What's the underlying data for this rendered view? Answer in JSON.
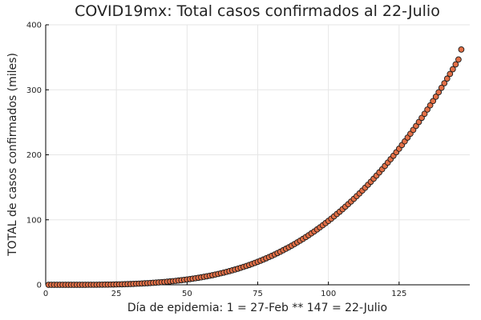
{
  "chart_data": {
    "type": "scatter",
    "title": "COVID19mx: Total casos confirmados al 22-Julio",
    "xlabel": "Día de epidemia: 1 = 27-Feb ** 147 = 22-Julio",
    "ylabel": "TOTAL de casos confirmados (miles)",
    "xlim": [
      0,
      150
    ],
    "ylim": [
      0,
      400
    ],
    "xticks": [
      0,
      25,
      50,
      75,
      100,
      125
    ],
    "yticks": [
      0,
      100,
      200,
      300,
      400
    ],
    "x_tick_labels": [
      "0",
      "25",
      "50",
      "75",
      "100",
      "125"
    ],
    "y_tick_labels": [
      "0",
      "100",
      "200",
      "300",
      "400"
    ],
    "grid": true,
    "legend": "none",
    "marker_color": "#e26f46",
    "series": [
      {
        "x": [
          1,
          2,
          3,
          4,
          5,
          6,
          7,
          8,
          9,
          10,
          11,
          12,
          13,
          14,
          15,
          16,
          17,
          18,
          19,
          20,
          21,
          22,
          23,
          24,
          25,
          26,
          27,
          28,
          29,
          30,
          31,
          32,
          33,
          34,
          35,
          36,
          37,
          38,
          39,
          40,
          41,
          42,
          43,
          44,
          45,
          46,
          47,
          48,
          49,
          50,
          51,
          52,
          53,
          54,
          55,
          56,
          57,
          58,
          59,
          60,
          61,
          62,
          63,
          64,
          65,
          66,
          67,
          68,
          69,
          70,
          71,
          72,
          73,
          74,
          75,
          76,
          77,
          78,
          79,
          80,
          81,
          82,
          83,
          84,
          85,
          86,
          87,
          88,
          89,
          90,
          91,
          92,
          93,
          94,
          95,
          96,
          97,
          98,
          99,
          100,
          101,
          102,
          103,
          104,
          105,
          106,
          107,
          108,
          109,
          110,
          111,
          112,
          113,
          114,
          115,
          116,
          117,
          118,
          119,
          120,
          121,
          122,
          123,
          124,
          125,
          126,
          127,
          128,
          129,
          130,
          131,
          132,
          133,
          134,
          135,
          136,
          137,
          138,
          139,
          140,
          141,
          142,
          143,
          144,
          145,
          146,
          147
        ],
        "y": [
          0.0,
          0.0,
          0.0,
          0.0,
          0.0,
          0.0,
          0.0,
          0.0,
          0.0,
          0.0,
          0.0,
          0.0,
          0.0,
          0.0,
          0.1,
          0.1,
          0.1,
          0.1,
          0.2,
          0.2,
          0.3,
          0.3,
          0.4,
          0.5,
          0.6,
          0.7,
          0.8,
          0.9,
          1.1,
          1.2,
          1.4,
          1.6,
          1.8,
          2.0,
          2.3,
          2.5,
          2.8,
          3.1,
          3.4,
          3.7,
          4.1,
          4.4,
          4.8,
          5.2,
          5.6,
          6.1,
          6.6,
          7.1,
          7.6,
          8.2,
          8.8,
          9.4,
          10.1,
          10.8,
          11.5,
          12.3,
          13.1,
          13.9,
          14.8,
          15.8,
          16.7,
          17.8,
          18.8,
          19.9,
          21.1,
          22.3,
          23.5,
          24.8,
          26.2,
          27.6,
          29.0,
          30.5,
          32.1,
          33.7,
          35.4,
          37.1,
          38.9,
          40.8,
          42.7,
          44.6,
          46.7,
          48.8,
          50.9,
          53.2,
          55.5,
          57.8,
          60.2,
          62.7,
          65.3,
          67.9,
          70.6,
          73.4,
          76.2,
          79.2,
          82.1,
          85.2,
          88.4,
          91.6,
          94.9,
          98.3,
          101.7,
          105.3,
          108.9,
          112.5,
          116.3,
          120.2,
          124.1,
          128.1,
          132.2,
          136.4,
          140.6,
          145.0,
          149.4,
          153.9,
          158.5,
          163.2,
          168.0,
          172.9,
          177.8,
          182.9,
          188.0,
          193.2,
          198.5,
          203.9,
          209.4,
          215.0,
          220.7,
          226.5,
          232.4,
          238.3,
          244.4,
          250.5,
          256.8,
          263.1,
          269.6,
          276.1,
          282.7,
          289.4,
          296.2,
          303.1,
          310.1,
          317.2,
          324.4,
          331.7,
          339.1,
          346.6,
          362.0
        ]
      }
    ]
  }
}
